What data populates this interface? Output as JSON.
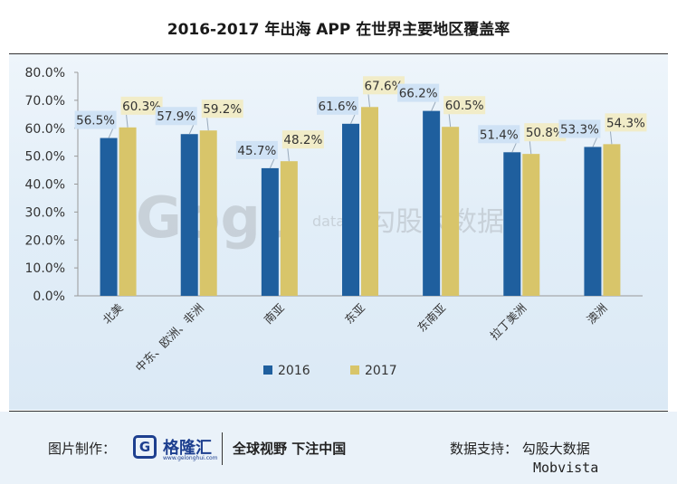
{
  "title": "2016-2017 年出海 APP 在世界主要地区覆盖率",
  "footer": {
    "made_by_label": "图片制作：",
    "logo_name": "格隆汇",
    "logo_url": "www.gelonghui.com",
    "slogan": "全球视野 下注中国",
    "source_label": "数据支持： 勾股大数据",
    "source_sub": "Mobvista"
  },
  "watermark": {
    "logo_text": "Gogu",
    "small": "data",
    "cn": "勾股大数据"
  },
  "chart_data": {
    "type": "bar",
    "title": "2016-2017 年出海 APP 在世界主要地区覆盖率",
    "categories": [
      "北美",
      "中东、欧洲、非洲",
      "南亚",
      "东亚",
      "东南亚",
      "拉丁美洲",
      "澳洲"
    ],
    "series": [
      {
        "name": "2016",
        "values": [
          56.5,
          57.9,
          45.7,
          61.6,
          66.2,
          51.4,
          53.3
        ],
        "color": "#1f5f9e",
        "label_bg": "#cfe2f5"
      },
      {
        "name": "2017",
        "values": [
          60.3,
          59.2,
          48.2,
          67.6,
          60.5,
          50.8,
          54.3
        ],
        "color": "#d8c56a",
        "label_bg": "#f1ecc8"
      }
    ],
    "data_labels": [
      [
        "56.5%",
        "57.9%",
        "45.7%",
        "61.6%",
        "66.2%",
        "51.4%",
        "53.3%"
      ],
      [
        "60.3%",
        "59.2%",
        "48.2%",
        "67.6%",
        "60.5%",
        "50.8%",
        "54.3%"
      ]
    ],
    "yticks": [
      "0.0%",
      "10.0%",
      "20.0%",
      "30.0%",
      "40.0%",
      "50.0%",
      "60.0%",
      "70.0%",
      "80.0%"
    ],
    "ylim": [
      0,
      80
    ],
    "xlabel": "",
    "ylabel": "",
    "legend": {
      "placement": "bottom-center",
      "items": [
        "2016",
        "2017"
      ]
    },
    "grid": false
  }
}
